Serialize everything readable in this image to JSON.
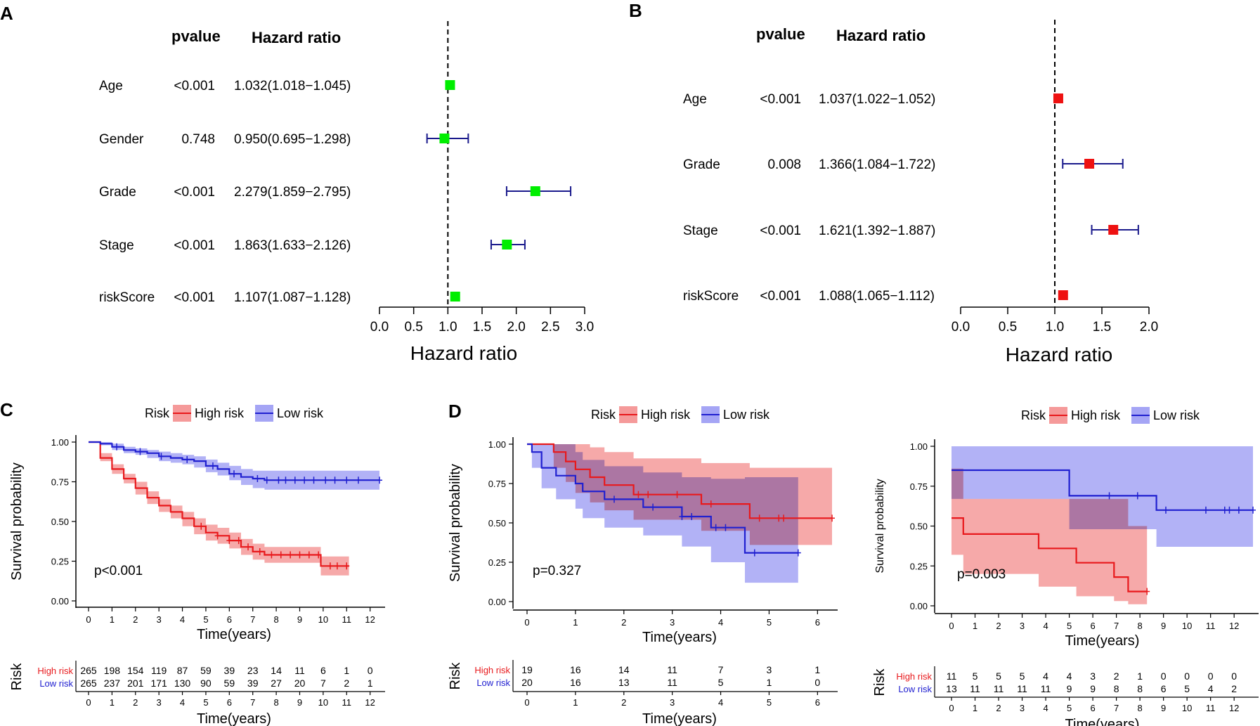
{
  "colors": {
    "green": "#00ee00",
    "red": "#ee1111",
    "navy": "#1a1a8c",
    "high": "#e8191c",
    "low": "#2020d0",
    "high_fill": "#f59a9a",
    "low_fill": "#a5a5f5",
    "overlap_fill": "#a35bb1"
  },
  "chart_data": [
    {
      "panel": "A",
      "type": "forest",
      "col_headers": {
        "pvalue": "pvalue",
        "hr": "Hazard ratio"
      },
      "xlabel": "Hazard ratio",
      "ticks": [
        0.0,
        0.5,
        1.0,
        1.5,
        2.0,
        2.5,
        3.0
      ],
      "tick_labels": [
        "0.0",
        "0.5",
        "1.0",
        "1.5",
        "2.0",
        "2.5",
        "3.0"
      ],
      "xlim": [
        0,
        3
      ],
      "ref": 1,
      "rows": [
        {
          "name": "Age",
          "p": "<0.001",
          "hr_text": "1.032(1.018−1.045)",
          "hr": 1.032,
          "lo": 1.018,
          "hi": 1.045
        },
        {
          "name": "Gender",
          "p": "0.748",
          "hr_text": "0.950(0.695−1.298)",
          "hr": 0.95,
          "lo": 0.695,
          "hi": 1.298
        },
        {
          "name": "Grade",
          "p": "<0.001",
          "hr_text": "2.279(1.859−2.795)",
          "hr": 2.279,
          "lo": 1.859,
          "hi": 2.795
        },
        {
          "name": "Stage",
          "p": "<0.001",
          "hr_text": "1.863(1.633−2.126)",
          "hr": 1.863,
          "lo": 1.633,
          "hi": 2.126
        },
        {
          "name": "riskScore",
          "p": "<0.001",
          "hr_text": "1.107(1.087−1.128)",
          "hr": 1.107,
          "lo": 1.087,
          "hi": 1.128
        }
      ]
    },
    {
      "panel": "B",
      "type": "forest",
      "col_headers": {
        "pvalue": "pvalue",
        "hr": "Hazard ratio"
      },
      "xlabel": "Hazard ratio",
      "ticks": [
        0.0,
        0.5,
        1.0,
        1.5,
        2.0
      ],
      "tick_labels": [
        "0.0",
        "0.5",
        "1.0",
        "1.5",
        "2.0"
      ],
      "xlim": [
        0,
        2
      ],
      "ref": 1,
      "rows": [
        {
          "name": "Age",
          "p": "<0.001",
          "hr_text": "1.037(1.022−1.052)",
          "hr": 1.037,
          "lo": 1.022,
          "hi": 1.052
        },
        {
          "name": "Grade",
          "p": "0.008",
          "hr_text": "1.366(1.084−1.722)",
          "hr": 1.366,
          "lo": 1.084,
          "hi": 1.722
        },
        {
          "name": "Stage",
          "p": "<0.001",
          "hr_text": "1.621(1.392−1.887)",
          "hr": 1.621,
          "lo": 1.392,
          "hi": 1.887
        },
        {
          "name": "riskScore",
          "p": "<0.001",
          "hr_text": "1.088(1.065−1.112)",
          "hr": 1.088,
          "lo": 1.065,
          "hi": 1.112
        }
      ]
    },
    {
      "panel": "C",
      "type": "line",
      "legend_title": "Risk",
      "legend_labels": [
        "High risk",
        "Low risk"
      ],
      "ylabel": "Survival probability",
      "xlabel": "Time(years)",
      "pvalue": "p<0.001",
      "xticks": [
        "0",
        "1",
        "2",
        "3",
        "4",
        "5",
        "6",
        "7",
        "8",
        "9",
        "10",
        "11",
        "12"
      ],
      "yticks": [
        "0.00",
        "0.25",
        "0.50",
        "0.75",
        "1.00"
      ],
      "xlim": [
        0,
        12.4
      ],
      "risk_table": {
        "title": "Risk",
        "xticks": [
          "0",
          "1",
          "2",
          "3",
          "4",
          "5",
          "6",
          "7",
          "8",
          "9",
          "10",
          "11",
          "12"
        ],
        "high": [
          "265",
          "198",
          "154",
          "119",
          "87",
          "59",
          "39",
          "23",
          "14",
          "11",
          "6",
          "1",
          "0"
        ],
        "low": [
          "265",
          "237",
          "201",
          "171",
          "130",
          "90",
          "59",
          "39",
          "27",
          "20",
          "7",
          "2",
          "1"
        ]
      },
      "series": [
        {
          "name": "High risk",
          "x": [
            0,
            0.5,
            1,
            1.5,
            2,
            2.5,
            3,
            3.5,
            4,
            4.5,
            5,
            5.5,
            6,
            6.5,
            7,
            7.5,
            8,
            8.5,
            9,
            9.5,
            9.9,
            10.5,
            11.1
          ],
          "y": [
            1,
            0.9,
            0.83,
            0.77,
            0.71,
            0.65,
            0.6,
            0.56,
            0.52,
            0.47,
            0.43,
            0.41,
            0.38,
            0.34,
            0.31,
            0.29,
            0.29,
            0.29,
            0.29,
            0.29,
            0.22,
            0.22,
            0.22
          ],
          "lower": [
            1,
            0.88,
            0.8,
            0.74,
            0.67,
            0.61,
            0.56,
            0.52,
            0.47,
            0.42,
            0.38,
            0.36,
            0.33,
            0.29,
            0.26,
            0.24,
            0.24,
            0.24,
            0.24,
            0.24,
            0.16,
            0.16,
            0.16
          ],
          "upper": [
            1,
            0.93,
            0.86,
            0.8,
            0.75,
            0.69,
            0.64,
            0.6,
            0.56,
            0.52,
            0.48,
            0.46,
            0.43,
            0.39,
            0.36,
            0.34,
            0.34,
            0.34,
            0.34,
            0.34,
            0.28,
            0.28,
            0.28
          ],
          "censor": [
            4.8,
            5.5,
            6,
            6.4,
            6.8,
            7.3,
            7.8,
            8.2,
            8.6,
            9,
            9.4,
            9.8,
            10.3,
            10.6,
            11
          ]
        },
        {
          "name": "Low risk",
          "x": [
            0,
            0.5,
            1,
            1.5,
            2,
            2.5,
            3,
            3.5,
            4,
            4.5,
            5,
            5.5,
            6,
            6.5,
            7,
            7.5,
            8,
            9,
            10,
            11,
            12.4
          ],
          "y": [
            1,
            0.99,
            0.97,
            0.95,
            0.94,
            0.93,
            0.91,
            0.9,
            0.89,
            0.88,
            0.85,
            0.83,
            0.8,
            0.78,
            0.77,
            0.76,
            0.76,
            0.76,
            0.76,
            0.76,
            0.76
          ],
          "lower": [
            1,
            0.98,
            0.95,
            0.93,
            0.92,
            0.9,
            0.88,
            0.87,
            0.86,
            0.84,
            0.81,
            0.79,
            0.76,
            0.73,
            0.71,
            0.7,
            0.7,
            0.7,
            0.7,
            0.7,
            0.67
          ],
          "upper": [
            1,
            1,
            0.99,
            0.97,
            0.96,
            0.95,
            0.94,
            0.93,
            0.92,
            0.91,
            0.89,
            0.87,
            0.85,
            0.83,
            0.82,
            0.82,
            0.82,
            0.82,
            0.82,
            0.82,
            0.84
          ],
          "censor": [
            1.2,
            2.2,
            3.1,
            4.2,
            5.3,
            6.2,
            7.2,
            7.6,
            8.1,
            8.4,
            8.8,
            9.2,
            9.6,
            10.1,
            10.5,
            11,
            11.5,
            12.4
          ]
        }
      ]
    },
    {
      "panel": "D1",
      "type": "line",
      "legend_title": "Risk",
      "legend_labels": [
        "High risk",
        "Low risk"
      ],
      "ylabel": "Survival probability",
      "xlabel": "Time(years)",
      "pvalue": "p=0.327",
      "xticks": [
        "0",
        "1",
        "2",
        "3",
        "4",
        "5",
        "6"
      ],
      "yticks": [
        "0.00",
        "0.25",
        "0.50",
        "0.75",
        "1.00"
      ],
      "xlim": [
        0,
        6.3
      ],
      "risk_table": {
        "title": "Risk",
        "xticks": [
          "0",
          "1",
          "2",
          "3",
          "4",
          "5",
          "6"
        ],
        "high": [
          "19",
          "16",
          "14",
          "11",
          "7",
          "3",
          "1"
        ],
        "low": [
          "20",
          "16",
          "13",
          "11",
          "5",
          "1",
          "0"
        ]
      },
      "series": [
        {
          "name": "High risk",
          "x": [
            0,
            0.55,
            0.8,
            1.0,
            1.3,
            1.6,
            2.2,
            3.6,
            4.6,
            6.3
          ],
          "y": [
            1,
            0.95,
            0.89,
            0.84,
            0.79,
            0.74,
            0.68,
            0.62,
            0.53,
            0.53
          ],
          "lower": [
            1,
            0.85,
            0.76,
            0.69,
            0.63,
            0.58,
            0.52,
            0.45,
            0.36,
            0.33
          ],
          "upper": [
            1,
            1,
            1,
            1,
            0.98,
            0.95,
            0.91,
            0.88,
            0.85,
            0.85
          ],
          "censor": [
            2.3,
            2.5,
            3.1,
            3.8,
            4.8,
            5.2,
            5.3,
            6.3
          ]
        },
        {
          "name": "Low risk",
          "x": [
            0,
            0.1,
            0.3,
            0.6,
            1.0,
            1.15,
            1.6,
            2.4,
            3.2,
            3.8,
            4.5,
            5.6
          ],
          "y": [
            1,
            0.95,
            0.85,
            0.8,
            0.75,
            0.7,
            0.65,
            0.6,
            0.54,
            0.47,
            0.31,
            0.31
          ],
          "lower": [
            1,
            0.85,
            0.72,
            0.65,
            0.59,
            0.53,
            0.47,
            0.42,
            0.35,
            0.25,
            0.12,
            0.12
          ],
          "upper": [
            1,
            1,
            1,
            1,
            0.95,
            0.9,
            0.86,
            0.82,
            0.79,
            0.78,
            0.79,
            0.79
          ],
          "censor": [
            1.8,
            2.6,
            3.2,
            3.4,
            3.9,
            4.1,
            4.7,
            5.6
          ]
        }
      ]
    },
    {
      "panel": "D2",
      "type": "line",
      "legend_title": "Risk",
      "legend_labels": [
        "High risk",
        "Low risk"
      ],
      "ylabel": "Survival probability",
      "xlabel": "Time(years)",
      "pvalue": "p=0.003",
      "xticks": [
        "0",
        "1",
        "2",
        "3",
        "4",
        "5",
        "6",
        "7",
        "8",
        "9",
        "10",
        "11",
        "12"
      ],
      "yticks": [
        "0.00",
        "0.25",
        "0.50",
        "0.75",
        "1.00"
      ],
      "xlim": [
        0,
        12.8
      ],
      "risk_table": {
        "title": "Risk",
        "xticks": [
          "0",
          "1",
          "2",
          "3",
          "4",
          "5",
          "6",
          "7",
          "8",
          "9",
          "10",
          "11",
          "12"
        ],
        "high": [
          "11",
          "5",
          "5",
          "5",
          "4",
          "4",
          "3",
          "2",
          "1",
          "0",
          "0",
          "0",
          "0"
        ],
        "low": [
          "13",
          "11",
          "11",
          "11",
          "11",
          "9",
          "9",
          "8",
          "8",
          "6",
          "5",
          "4",
          "2"
        ]
      },
      "series": [
        {
          "name": "High risk",
          "x": [
            0,
            0.5,
            3.7,
            5.3,
            6.9,
            7.5,
            8.3
          ],
          "y": [
            0.55,
            0.45,
            0.36,
            0.27,
            0.18,
            0.09,
            0.09
          ],
          "lower": [
            0.32,
            0.2,
            0.12,
            0.06,
            0.03,
            0.01,
            0.01
          ],
          "upper": [
            0.86,
            0.67,
            0.67,
            0.67,
            0.67,
            0.5,
            0.5
          ],
          "censor": [
            8.3
          ]
        },
        {
          "name": "Low risk",
          "x": [
            0,
            5.0,
            8.7,
            12.8
          ],
          "y": [
            0.85,
            0.69,
            0.6,
            0.6
          ],
          "lower": [
            0.67,
            0.48,
            0.37,
            0.37
          ],
          "upper": [
            1,
            1,
            1,
            1
          ],
          "censor": [
            6.7,
            7.9,
            9.1,
            10.8,
            11.6,
            11.8,
            12.2,
            12.8
          ]
        }
      ]
    }
  ]
}
